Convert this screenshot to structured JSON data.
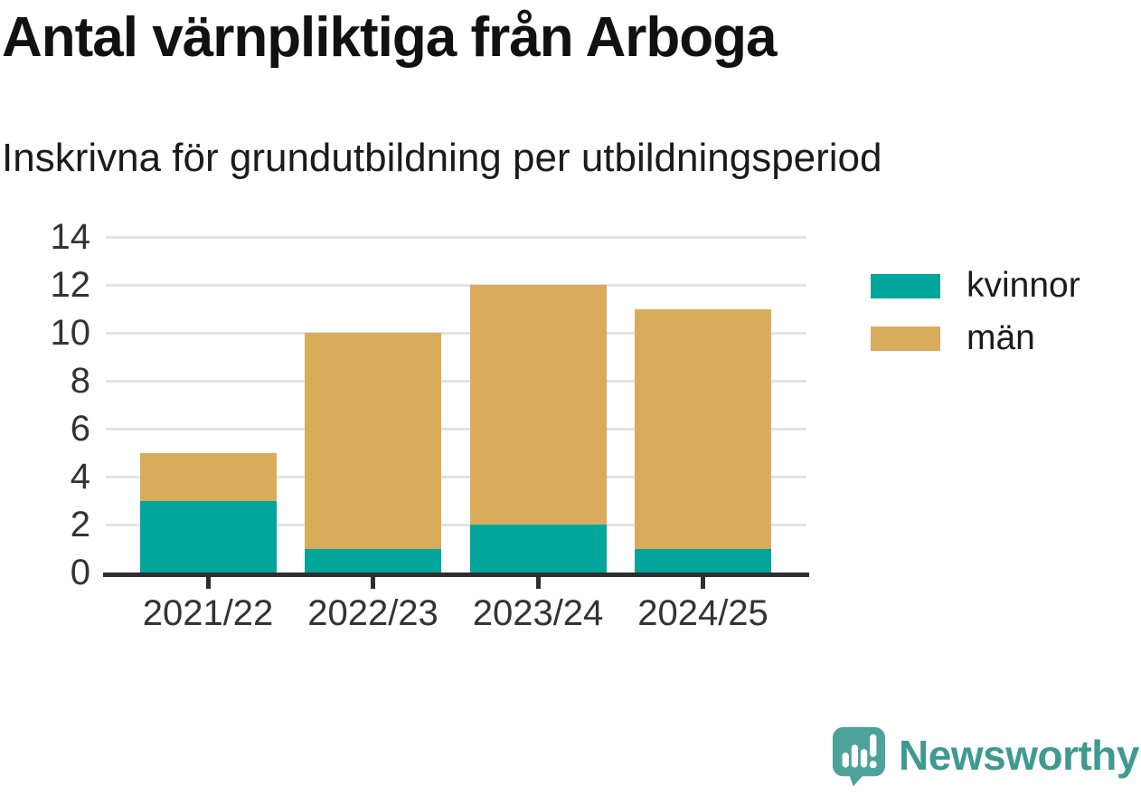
{
  "header": {
    "title": "Antal värnpliktiga från Arboga",
    "subtitle": "Inskrivna för grundutbildning per utbildningsperiod"
  },
  "chart_data": {
    "type": "bar",
    "stacked": true,
    "title": "Antal värnpliktiga från Arboga",
    "subtitle": "Inskrivna för grundutbildning per utbildningsperiod",
    "categories": [
      "2021/22",
      "2022/23",
      "2023/24",
      "2024/25"
    ],
    "series": [
      {
        "name": "kvinnor",
        "color": "#00a69c",
        "values": [
          3,
          1,
          2,
          1
        ]
      },
      {
        "name": "män",
        "color": "#d9ac5c",
        "values": [
          2,
          9,
          10,
          10
        ]
      }
    ],
    "totals": [
      5,
      10,
      12,
      11
    ],
    "xlabel": "",
    "ylabel": "",
    "ylim": [
      0,
      14
    ],
    "yticks": [
      0,
      2,
      4,
      6,
      8,
      10,
      12,
      14
    ],
    "grid": true,
    "legend_position": "right"
  },
  "branding": {
    "logo_text": "Newsworthy",
    "logo_text_color": "#3e9a90",
    "logo_icon_color": "#4ba39a"
  },
  "colors": {
    "gridline": "#e3e3e3",
    "axis_line": "#2e2e2e",
    "tick_text": "#333333",
    "title_text": "#111111"
  }
}
